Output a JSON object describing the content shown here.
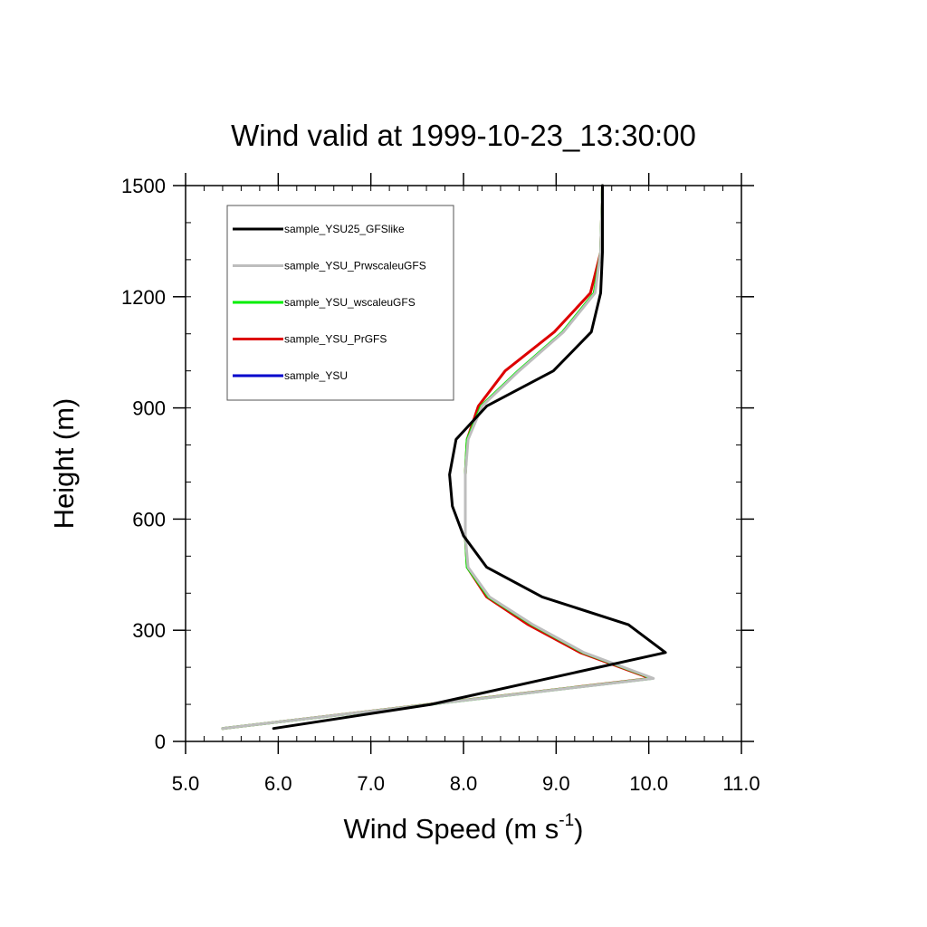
{
  "chart_data": {
    "type": "line",
    "title": "Wind valid at 1999-10-23_13:30:00",
    "xlabel": "Wind Speed (m s",
    "xlabel_superscript": "-1",
    "xlabel_suffix": ")",
    "ylabel": "Height (m)",
    "xlim": [
      5.0,
      11.0
    ],
    "ylim": [
      0,
      1500
    ],
    "x_ticks": [
      5.0,
      6.0,
      7.0,
      8.0,
      9.0,
      10.0,
      11.0
    ],
    "x_tick_labels": [
      "5.0",
      "6.0",
      "7.0",
      "8.0",
      "9.0",
      "10.0",
      "11.0"
    ],
    "y_ticks": [
      0,
      300,
      600,
      900,
      1200,
      1500
    ],
    "y_tick_labels": [
      "0",
      "300",
      "600",
      "900",
      "1200",
      "1500"
    ],
    "grid": false,
    "legend_position": "top-left",
    "series": [
      {
        "name": "sample_YSU25_GFSlike",
        "color": "#000000",
        "x": [
          5.95,
          7.65,
          10.18,
          9.78,
          8.85,
          8.25,
          8.0,
          7.88,
          7.85,
          7.92,
          8.25,
          8.97,
          9.38,
          9.48,
          9.5,
          9.5
        ],
        "y": [
          35,
          100,
          240,
          315,
          390,
          470,
          555,
          635,
          720,
          815,
          905,
          1000,
          1105,
          1210,
          1320,
          1500
        ]
      },
      {
        "name": "sample_YSU_PrwscaleuGFS",
        "color": "#bdbdbd",
        "x": [
          5.4,
          10.05,
          9.3,
          8.75,
          8.28,
          8.05,
          8.02,
          8.02,
          8.02,
          8.05,
          8.2,
          8.6,
          9.08,
          9.42,
          9.48,
          9.5
        ],
        "y": [
          35,
          170,
          240,
          315,
          390,
          470,
          555,
          635,
          720,
          815,
          905,
          1000,
          1105,
          1210,
          1320,
          1500
        ]
      },
      {
        "name": "sample_YSU_wscaleuGFS",
        "color": "#00ee00",
        "x": [
          5.4,
          10.04,
          9.29,
          8.74,
          8.27,
          8.04,
          8.02,
          8.02,
          8.02,
          8.04,
          8.19,
          8.59,
          9.07,
          9.41,
          9.48,
          9.5
        ],
        "y": [
          35,
          170,
          240,
          315,
          390,
          470,
          555,
          635,
          720,
          815,
          905,
          1000,
          1105,
          1210,
          1320,
          1500
        ]
      },
      {
        "name": "sample_YSU_PrGFS",
        "color": "#dd0000",
        "x": [
          5.4,
          10.02,
          9.26,
          8.7,
          8.25,
          8.04,
          8.02,
          8.02,
          8.02,
          8.04,
          8.16,
          8.45,
          8.98,
          9.37,
          9.48,
          9.5
        ],
        "y": [
          35,
          170,
          240,
          315,
          390,
          470,
          555,
          635,
          720,
          815,
          905,
          1000,
          1105,
          1210,
          1320,
          1500
        ]
      },
      {
        "name": "sample_YSU",
        "color": "#0000cc",
        "x": [],
        "y": []
      }
    ]
  }
}
